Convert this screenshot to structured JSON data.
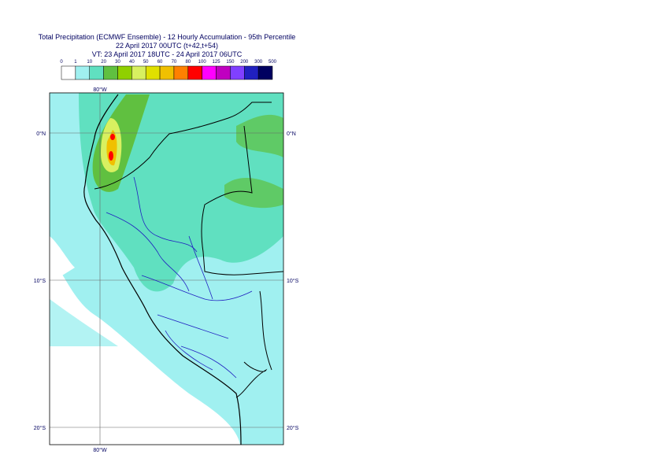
{
  "title": {
    "lines": [
      "Total Precipitation (ECMWF Ensemble) - 12 Hourly Accumulation - 95th Percentile",
      "22 April 2017 00UTC (t+42,t+54)",
      "VT: 23 April 2017 18UTC - 24 April 2017 06UTC"
    ]
  },
  "legend": {
    "labels": [
      "0",
      "1",
      "10",
      "20",
      "30",
      "40",
      "50",
      "60",
      "70",
      "80",
      "100",
      "125",
      "150",
      "200",
      "300",
      "500"
    ],
    "colors": [
      "#ffffff",
      "#a0f0f0",
      "#60e0c0",
      "#60c040",
      "#90d000",
      "#d8f060",
      "#e0e000",
      "#f0c000",
      "#ff8000",
      "#ff0000",
      "#ff00ff",
      "#c000c0",
      "#8040ff",
      "#2020c0",
      "#000060"
    ]
  },
  "map": {
    "longitudes": [
      "80°W"
    ],
    "latitudes": [
      "0°N",
      "10°S",
      "20°S"
    ]
  }
}
